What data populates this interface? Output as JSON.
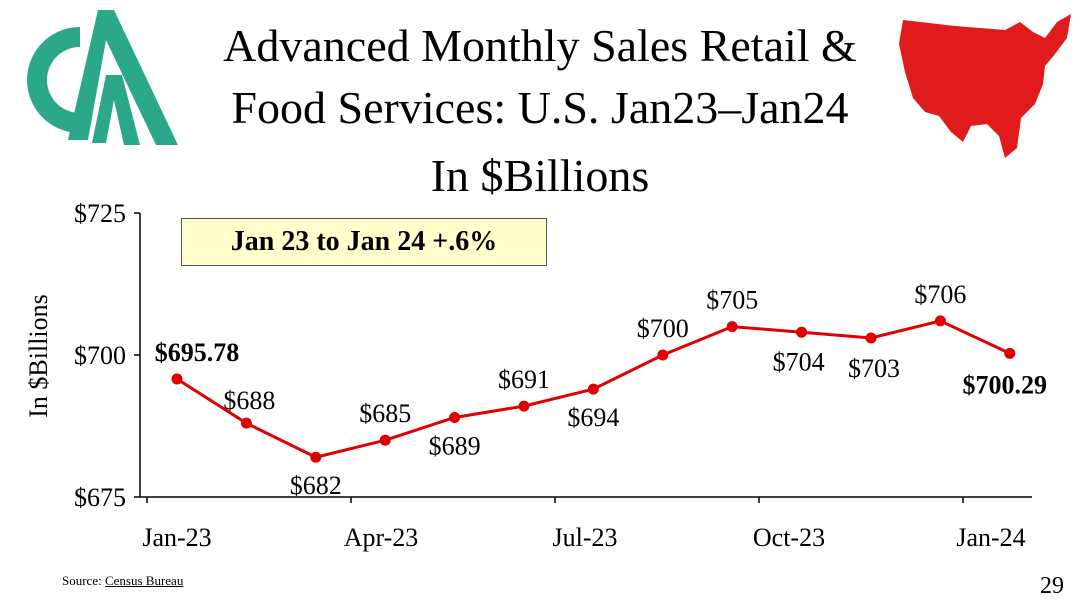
{
  "title": {
    "line1": "Advanced Monthly Sales Retail &",
    "line2": "Food Services: U.S. Jan23–Jan24",
    "line3": "In $Billions"
  },
  "callout": "Jan 23 to Jan 24 +.6%",
  "source": {
    "prefix": "Source:",
    "link": "Census Bureau"
  },
  "page_number": "29",
  "colors": {
    "series": "#e00000",
    "logo": "#2aa889",
    "map": "#e11b1b",
    "callout_bg": "#ffffcc"
  },
  "icons": {
    "logo": "company-logo-icon",
    "map": "us-map-icon"
  },
  "chart_data": {
    "type": "line",
    "title": "Advanced Monthly Sales Retail & Food Services: U.S. Jan23–Jan24 In $Billions",
    "ylabel": "In $Billions",
    "xlabel": "",
    "ylim": [
      675,
      725
    ],
    "yticks": [
      675,
      700,
      725
    ],
    "ytick_labels": [
      "$675",
      "$700",
      "$725"
    ],
    "x_tick_labels": [
      "Jan-23",
      "Apr-23",
      "Jul-23",
      "Oct-23",
      "Jan-24"
    ],
    "x_tick_positions": [
      0,
      3,
      6,
      9,
      12
    ],
    "series": [
      {
        "name": "Retail & Food Services",
        "values": [
          695.78,
          688,
          682,
          685,
          689,
          691,
          694,
          700,
          705,
          704,
          703,
          706,
          700.29
        ],
        "labels": [
          "$695.78",
          "$688",
          "$682",
          "$685",
          "$689",
          "$691",
          "$694",
          "$700",
          "$705",
          "$704",
          "$703",
          "$706",
          "$700.29"
        ]
      }
    ]
  }
}
